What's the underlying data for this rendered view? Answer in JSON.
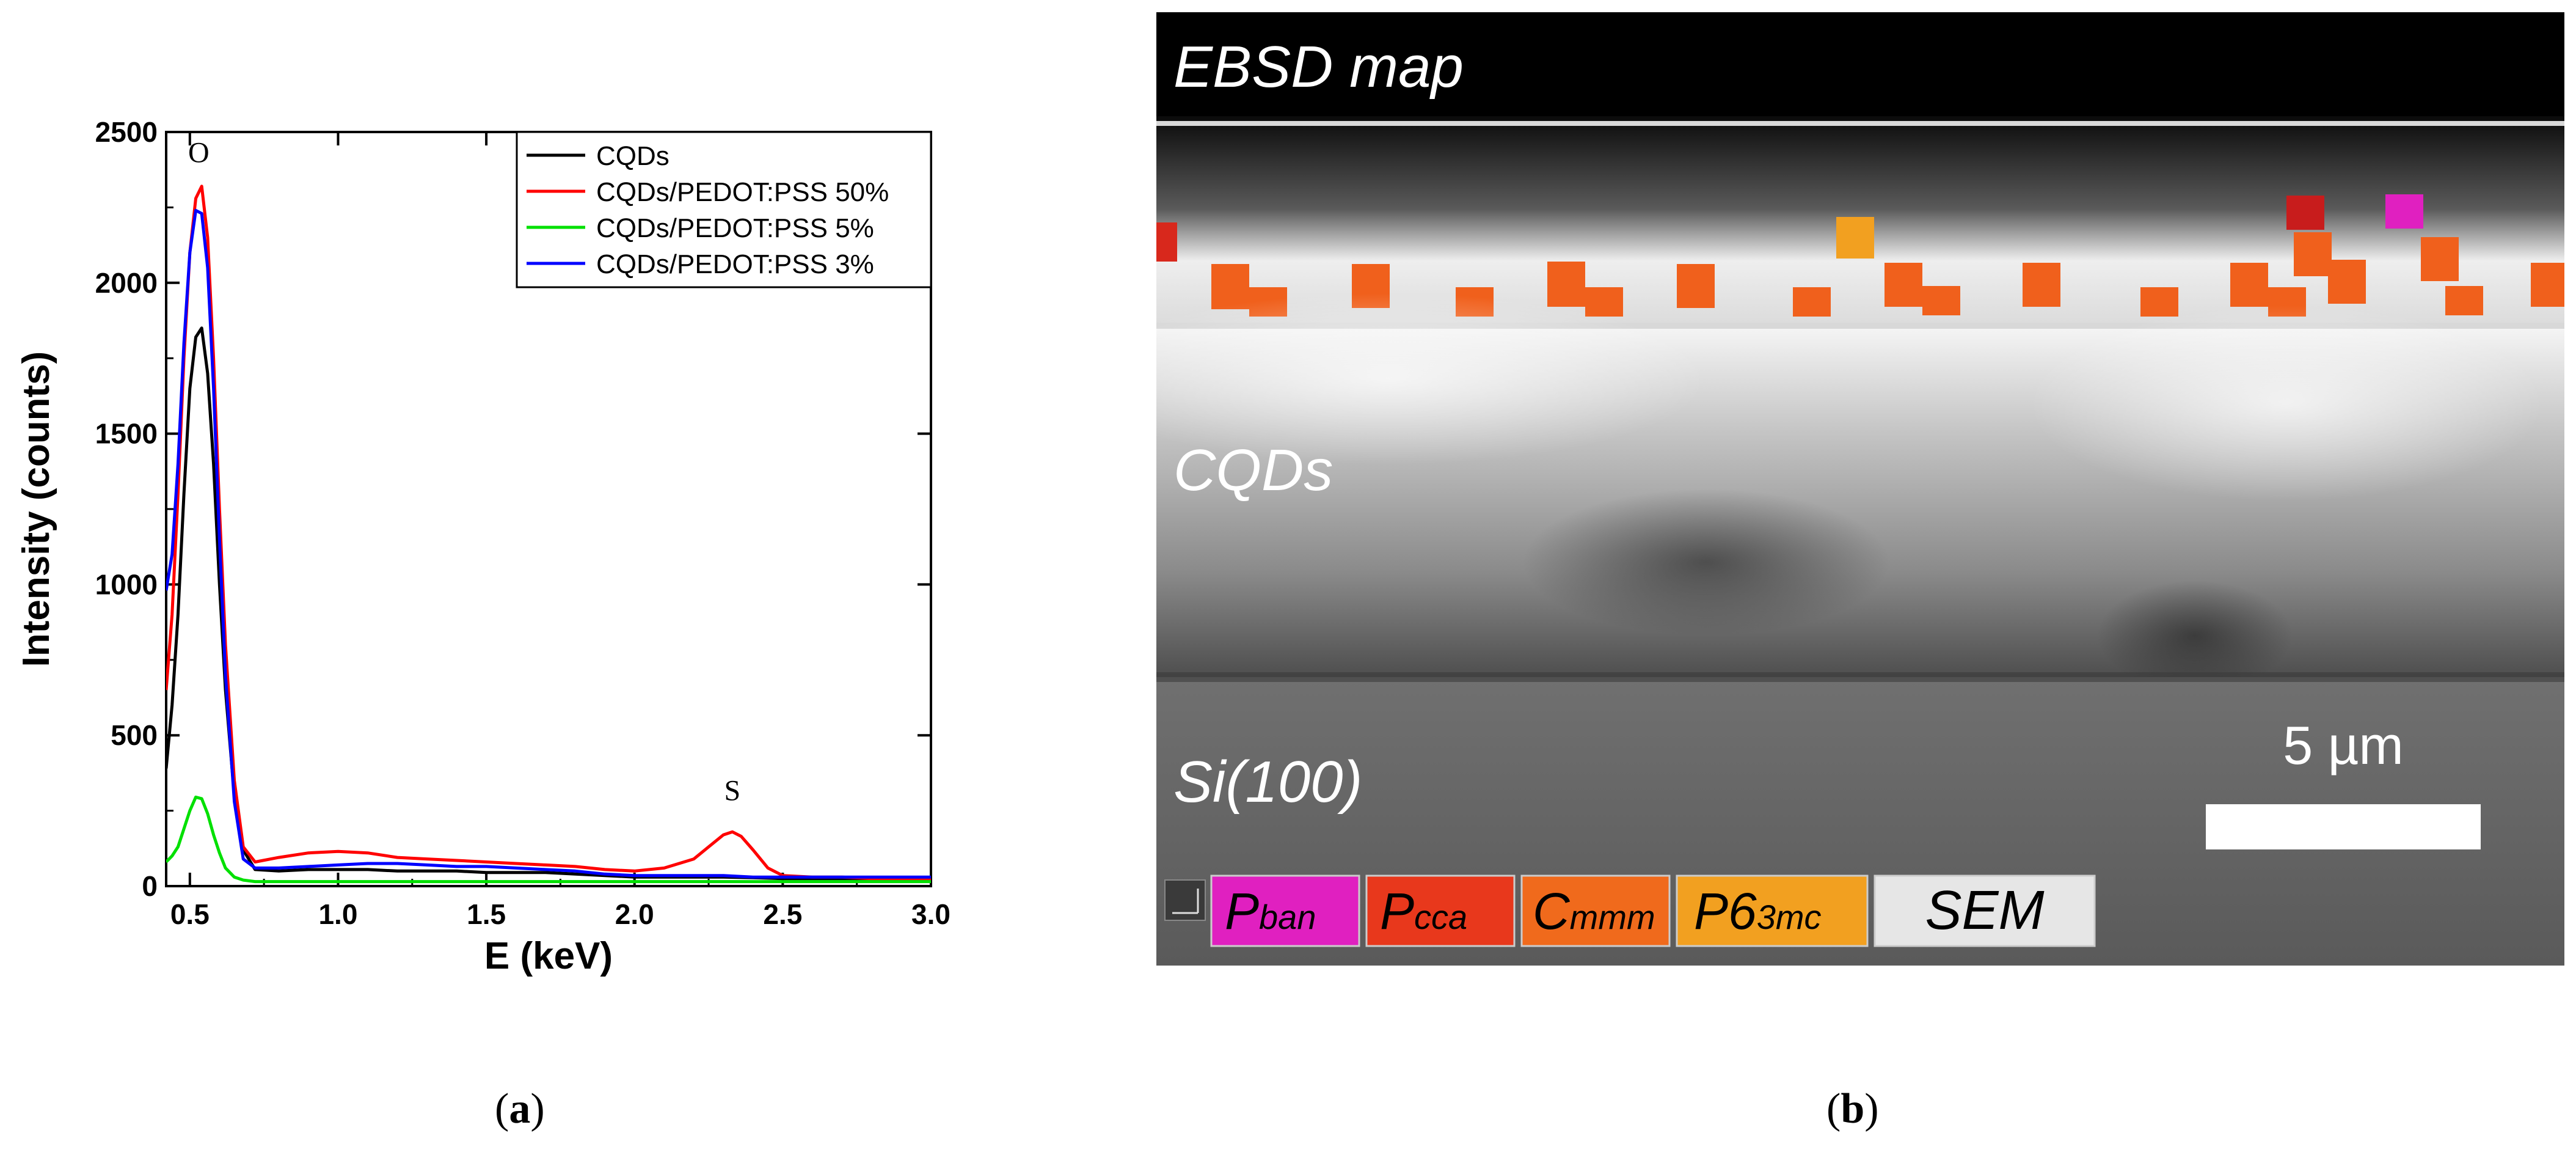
{
  "chart_data": {
    "type": "line",
    "xlabel": "E (keV)",
    "ylabel": "Intensity (counts)",
    "xlim": [
      0.42,
      3.0
    ],
    "ylim": [
      0,
      2500
    ],
    "xticks": [
      0.5,
      1.0,
      1.5,
      2.0,
      2.5,
      3.0
    ],
    "xtick_labels": [
      "0.5",
      "1.0",
      "1.5",
      "2.0",
      "2.5",
      "3.0"
    ],
    "yticks": [
      0,
      500,
      1000,
      1500,
      2000,
      2500
    ],
    "ytick_labels": [
      "0",
      "500",
      "1000",
      "1500",
      "2000",
      "2500"
    ],
    "annotations": [
      {
        "text": "O",
        "x": 0.53,
        "y": 2400
      },
      {
        "text": "S",
        "x": 2.33,
        "y": 285
      }
    ],
    "legend_position": "top-right",
    "series": [
      {
        "name": "CQDs",
        "color": "#000000",
        "x": [
          0.42,
          0.44,
          0.46,
          0.48,
          0.5,
          0.52,
          0.54,
          0.56,
          0.58,
          0.6,
          0.62,
          0.65,
          0.68,
          0.72,
          0.8,
          0.9,
          1.0,
          1.1,
          1.2,
          1.3,
          1.4,
          1.5,
          1.6,
          1.7,
          1.8,
          1.9,
          2.0,
          2.1,
          2.2,
          2.3,
          2.4,
          2.5,
          2.6,
          2.7,
          2.8,
          2.9,
          3.0
        ],
        "y": [
          390,
          600,
          900,
          1300,
          1650,
          1820,
          1850,
          1700,
          1400,
          1000,
          650,
          300,
          120,
          55,
          50,
          55,
          55,
          55,
          50,
          50,
          50,
          45,
          45,
          45,
          40,
          35,
          30,
          30,
          30,
          30,
          28,
          25,
          25,
          25,
          25,
          25,
          25
        ]
      },
      {
        "name": "CQDs/PEDOT:PSS 50%",
        "color": "#ff0000",
        "x": [
          0.42,
          0.44,
          0.46,
          0.48,
          0.5,
          0.52,
          0.54,
          0.56,
          0.58,
          0.6,
          0.62,
          0.65,
          0.68,
          0.72,
          0.8,
          0.9,
          1.0,
          1.1,
          1.2,
          1.3,
          1.4,
          1.5,
          1.6,
          1.7,
          1.8,
          1.9,
          2.0,
          2.1,
          2.2,
          2.25,
          2.3,
          2.33,
          2.36,
          2.4,
          2.45,
          2.5,
          2.6,
          2.7,
          2.8,
          2.9,
          3.0
        ],
        "y": [
          650,
          900,
          1300,
          1750,
          2100,
          2280,
          2320,
          2150,
          1750,
          1250,
          800,
          350,
          130,
          80,
          95,
          110,
          115,
          110,
          95,
          90,
          85,
          80,
          75,
          70,
          65,
          55,
          50,
          60,
          90,
          130,
          170,
          180,
          165,
          120,
          60,
          35,
          30,
          30,
          25,
          25,
          25
        ]
      },
      {
        "name": "CQDs/PEDOT:PSS 5%",
        "color": "#00e000",
        "x": [
          0.42,
          0.44,
          0.46,
          0.48,
          0.5,
          0.52,
          0.54,
          0.56,
          0.58,
          0.6,
          0.62,
          0.65,
          0.68,
          0.72,
          0.8,
          0.9,
          1.0,
          1.2,
          1.4,
          1.6,
          1.8,
          2.0,
          2.2,
          2.4,
          2.6,
          2.8,
          3.0
        ],
        "y": [
          80,
          100,
          130,
          190,
          250,
          295,
          290,
          240,
          170,
          110,
          60,
          30,
          20,
          15,
          15,
          15,
          15,
          15,
          15,
          15,
          15,
          15,
          15,
          15,
          15,
          15,
          15
        ]
      },
      {
        "name": "CQDs/PEDOT:PSS 3%",
        "color": "#0000ff",
        "x": [
          0.42,
          0.44,
          0.46,
          0.48,
          0.5,
          0.52,
          0.54,
          0.56,
          0.58,
          0.6,
          0.62,
          0.65,
          0.68,
          0.72,
          0.8,
          0.9,
          1.0,
          1.1,
          1.2,
          1.3,
          1.4,
          1.5,
          1.6,
          1.7,
          1.8,
          1.9,
          2.0,
          2.1,
          2.2,
          2.3,
          2.4,
          2.5,
          2.6,
          2.7,
          2.8,
          2.9,
          3.0
        ],
        "y": [
          980,
          1100,
          1400,
          1800,
          2100,
          2240,
          2230,
          2050,
          1650,
          1150,
          700,
          280,
          90,
          60,
          60,
          65,
          70,
          75,
          75,
          70,
          65,
          65,
          60,
          55,
          50,
          40,
          35,
          35,
          35,
          35,
          30,
          30,
          30,
          30,
          30,
          30,
          30
        ]
      }
    ]
  },
  "ebsd": {
    "top_label": "EBSD map",
    "layer_label_1": "CQDs",
    "layer_label_2": "Si(100)",
    "scale_label": "5 µm",
    "legend": [
      {
        "main": "P",
        "sub": "ban",
        "color": "#e020c0"
      },
      {
        "main": "P",
        "sub": "cca",
        "color": "#e8381c"
      },
      {
        "main": "C",
        "sub": "mmm",
        "color": "#f06a1c"
      },
      {
        "main": "P6",
        "sub": "3mc",
        "color": "#f2a020"
      },
      {
        "main": "SEM",
        "sub": "",
        "color": "#e6e6e6"
      }
    ]
  },
  "captions": {
    "a_open": "(",
    "a_letter": "a",
    "a_close": ")",
    "b_open": "(",
    "b_letter": "b",
    "b_close": ")"
  }
}
